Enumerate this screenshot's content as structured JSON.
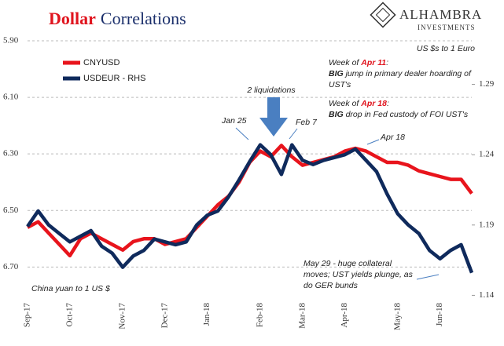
{
  "chart_data": {
    "type": "line",
    "title": [
      "Dollar",
      "Correlations"
    ],
    "brand": [
      "ALHAMBRA",
      "INVESTMENTS"
    ],
    "ylabel": "China yuan to 1 US $",
    "y2label": "US $s to 1 Euro",
    "categories": [
      "Sep-17",
      null,
      null,
      null,
      "Oct-17",
      null,
      null,
      null,
      null,
      "Nov-17",
      null,
      null,
      null,
      "Dec-17",
      null,
      null,
      null,
      "Jan-18",
      null,
      null,
      null,
      null,
      "Feb-18",
      null,
      null,
      null,
      "Mar-18",
      null,
      null,
      null,
      "Apr-18",
      null,
      null,
      null,
      null,
      "May-18",
      null,
      null,
      null,
      "Jun-18",
      null,
      null,
      null
    ],
    "series": [
      {
        "name": "CNYUSD",
        "color": "#e8141c",
        "axis": "y",
        "values": [
          6.56,
          6.54,
          6.58,
          6.62,
          6.66,
          6.6,
          6.58,
          6.6,
          6.62,
          6.64,
          6.61,
          6.6,
          6.6,
          6.62,
          6.61,
          6.6,
          6.56,
          6.52,
          6.48,
          6.45,
          6.4,
          6.33,
          6.29,
          6.31,
          6.27,
          6.31,
          6.34,
          6.33,
          6.32,
          6.31,
          6.29,
          6.28,
          6.29,
          6.31,
          6.33,
          6.33,
          6.34,
          6.36,
          6.37,
          6.38,
          6.39,
          6.39,
          6.44
        ]
      },
      {
        "name": "USDEUR - RHS",
        "color": "#0f2a5c",
        "axis": "y2",
        "values": [
          1.189,
          1.2,
          1.19,
          1.184,
          1.178,
          1.182,
          1.186,
          1.175,
          1.17,
          1.16,
          1.168,
          1.172,
          1.18,
          1.178,
          1.176,
          1.178,
          1.19,
          1.197,
          1.2,
          1.21,
          1.222,
          1.235,
          1.247,
          1.24,
          1.226,
          1.247,
          1.236,
          1.233,
          1.236,
          1.238,
          1.24,
          1.244,
          1.236,
          1.228,
          1.212,
          1.198,
          1.19,
          1.184,
          1.172,
          1.166,
          1.172,
          1.176,
          1.156
        ]
      }
    ],
    "ylim": [
      5.9,
      6.81
    ],
    "y_inverted": true,
    "yticks": [
      {
        "value": 5.9,
        "label": "5.90"
      },
      {
        "value": 6.1,
        "label": "6.10"
      },
      {
        "value": 6.3,
        "label": "6.30"
      },
      {
        "value": 6.5,
        "label": "6.50"
      },
      {
        "value": 6.7,
        "label": "6.70"
      }
    ],
    "y2lim": [
      1.138,
      1.321
    ],
    "y2ticks": [
      1.29,
      1.24,
      1.19,
      1.14
    ],
    "grid": true,
    "legend": "top-left",
    "annotations": {
      "liquidations": "2 liquidations",
      "jan25": "Jan 25",
      "feb7": "Feb 7",
      "apr18": "Apr 18",
      "note_apr11": [
        [
          "Week of ",
          "Apr 11",
          ":"
        ],
        [
          "BIG",
          " jump in primary dealer hoarding of"
        ],
        [
          "UST's"
        ]
      ],
      "note_apr18": [
        [
          "Week of ",
          "Apr 18",
          ":"
        ],
        [
          "BIG",
          " drop in Fed custody of FOI UST's"
        ]
      ],
      "note_may29": [
        "May 29 - huge collateral",
        "moves; UST yields plunge, as",
        "do GER bunds"
      ]
    }
  }
}
